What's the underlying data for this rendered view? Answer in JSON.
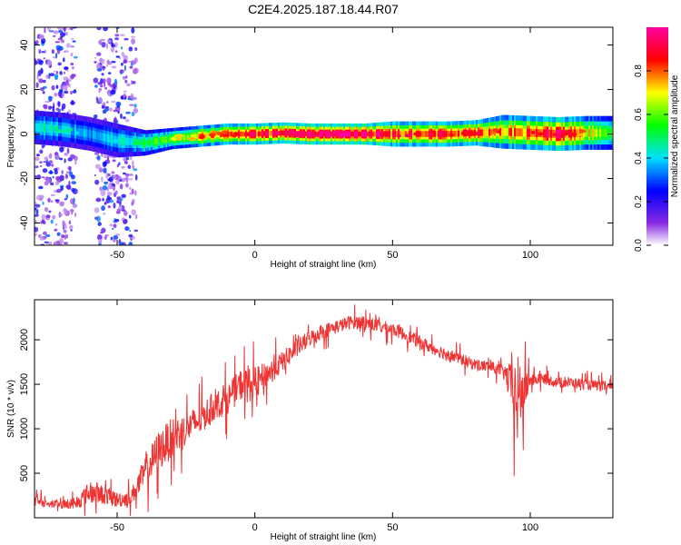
{
  "page": {
    "title": "C2E4.2025.187.18.44.R07"
  },
  "chart_data": [
    {
      "type": "heatmap",
      "xlabel": "Height of straight line (km)",
      "ylabel": "Frequency (Hz)",
      "xlim": [
        -80,
        130
      ],
      "ylim": [
        -50,
        48
      ],
      "xticks": [
        -50,
        0,
        50,
        100
      ],
      "yticks": [
        -40,
        -20,
        0,
        20,
        40
      ],
      "grid": false,
      "colorbar": {
        "label": "Normalized spectral amplitude",
        "range": [
          0,
          1
        ],
        "ticks": [
          "0.0",
          "0.2",
          "0.4",
          "0.6",
          "0.8"
        ],
        "colormap": "rainbow (white-violet-blue-cyan-green-yellow-red-magenta)"
      },
      "ridge": {
        "description": "narrow high-amplitude band near 0 Hz",
        "x": [
          -80,
          -70,
          -60,
          -50,
          -40,
          -30,
          -20,
          -10,
          0,
          10,
          20,
          30,
          40,
          50,
          60,
          70,
          80,
          90,
          100,
          110,
          120,
          130
        ],
        "frequency": [
          3,
          2,
          0,
          -3,
          -4,
          -2,
          -1,
          0,
          0,
          0.5,
          0,
          0,
          0,
          0,
          0,
          0,
          0.5,
          1,
          0.5,
          0,
          0.5,
          0.5
        ],
        "amplitude": [
          0.45,
          0.4,
          0.35,
          0.4,
          0.5,
          0.6,
          0.75,
          0.8,
          0.85,
          0.9,
          0.95,
          0.95,
          0.95,
          0.85,
          0.85,
          0.85,
          0.85,
          0.75,
          0.8,
          0.9,
          0.7,
          0.6
        ],
        "halfwidth": [
          4,
          4,
          4,
          4,
          3,
          2.5,
          2.5,
          2.5,
          2.5,
          2.5,
          2.5,
          2.5,
          2.5,
          3,
          3,
          3,
          3,
          4,
          4,
          4,
          4,
          4
        ]
      },
      "noise_regions": [
        {
          "x": [
            -80,
            -65
          ],
          "frequency": [
            -50,
            48
          ],
          "max_amplitude": 0.3
        },
        {
          "x": [
            -58,
            -43
          ],
          "frequency": [
            -50,
            48
          ],
          "max_amplitude": 0.3
        }
      ]
    },
    {
      "type": "line",
      "xlabel": "Height of straight line (km)",
      "ylabel": "SNR (10 * v/v)",
      "xlim": [
        -80,
        130
      ],
      "ylim": [
        0,
        2450
      ],
      "xticks": [
        -50,
        0,
        50,
        100
      ],
      "yticks": [
        500,
        1000,
        1500,
        2000
      ],
      "grid": false,
      "series": [
        {
          "color": "#ee3333",
          "x": [
            -80,
            -75,
            -70,
            -65,
            -60,
            -55,
            -50,
            -45,
            -40,
            -35,
            -30,
            -25,
            -20,
            -15,
            -10,
            -5,
            0,
            5,
            10,
            15,
            20,
            25,
            30,
            35,
            40,
            45,
            50,
            55,
            60,
            65,
            70,
            75,
            80,
            85,
            90,
            93,
            95,
            97,
            100,
            105,
            110,
            115,
            120,
            125,
            130
          ],
          "y": [
            180,
            160,
            150,
            170,
            280,
            260,
            200,
            230,
            500,
            750,
            900,
            1000,
            1100,
            1250,
            1330,
            1500,
            1500,
            1630,
            1750,
            1900,
            2020,
            2100,
            2150,
            2200,
            2200,
            2150,
            2120,
            2050,
            1970,
            1900,
            1840,
            1780,
            1720,
            1700,
            1650,
            1500,
            1300,
            1400,
            1550,
            1560,
            1520,
            1520,
            1500,
            1480,
            1460
          ],
          "noise_amplitude": [
            100,
            80,
            80,
            120,
            200,
            180,
            150,
            150,
            300,
            380,
            380,
            300,
            300,
            270,
            280,
            300,
            320,
            230,
            200,
            180,
            150,
            140,
            130,
            130,
            130,
            130,
            120,
            120,
            120,
            120,
            120,
            110,
            110,
            110,
            110,
            400,
            900,
            600,
            120,
            100,
            100,
            100,
            100,
            100,
            90
          ]
        }
      ]
    }
  ]
}
